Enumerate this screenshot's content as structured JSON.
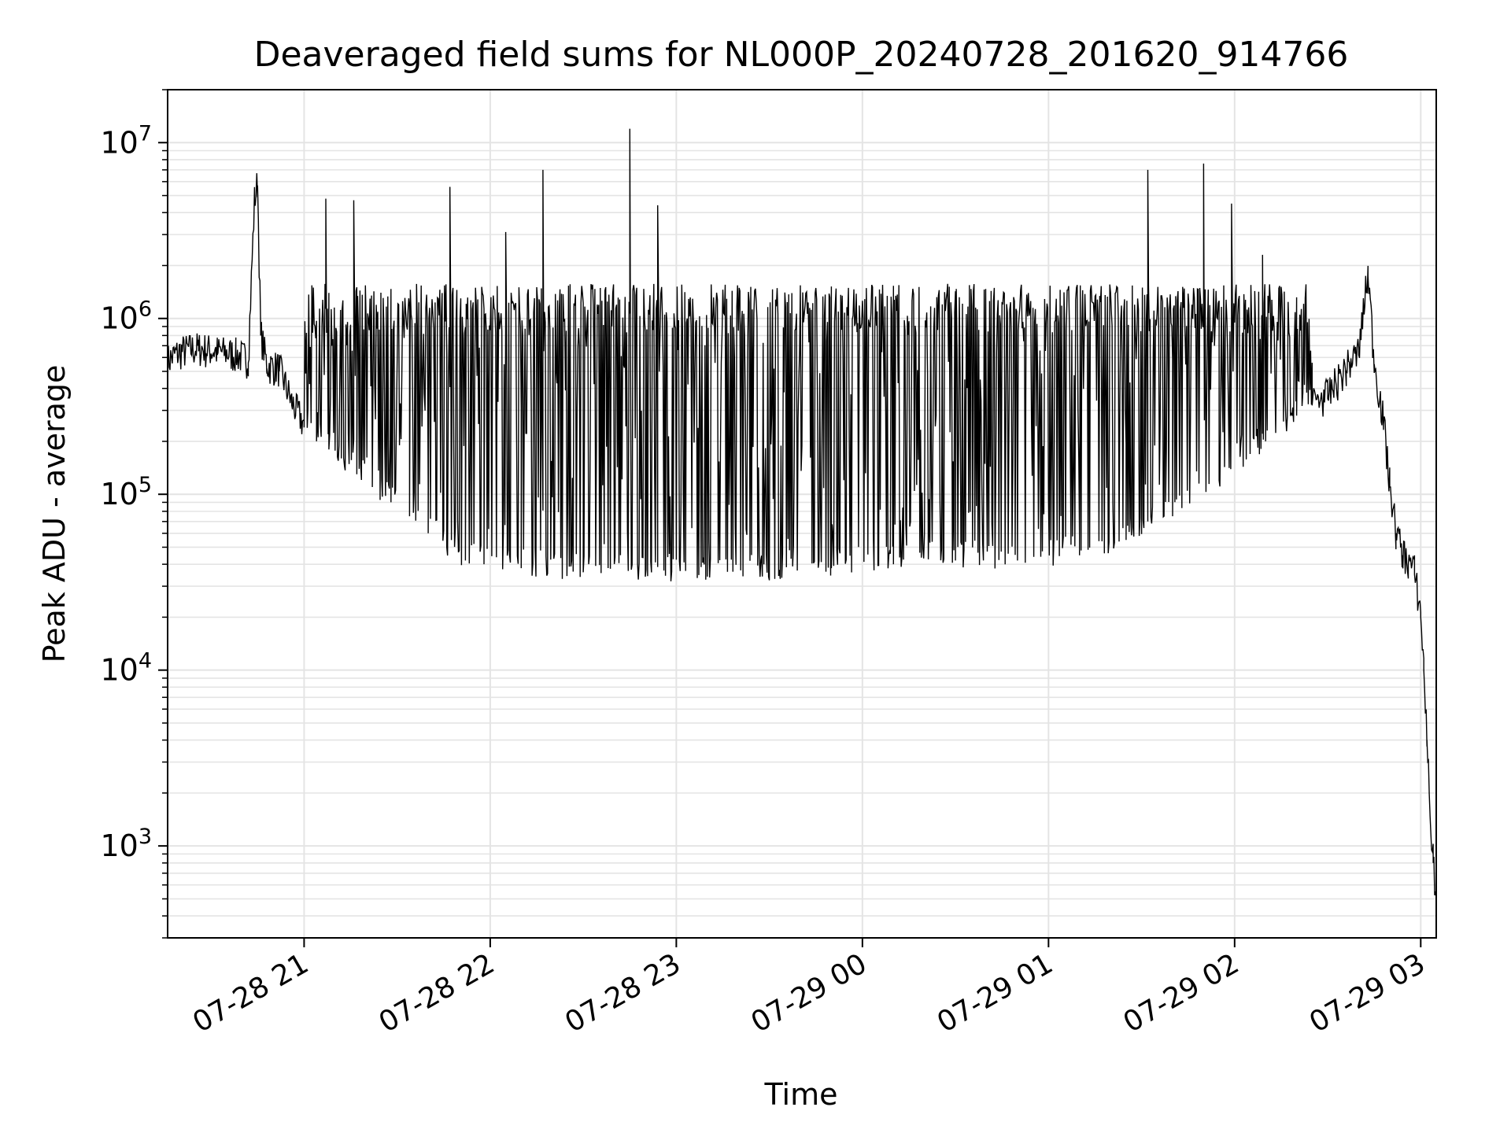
{
  "chart_data": {
    "type": "line",
    "title": "Deaveraged field sums for NL000P_20240728_201620_914766",
    "xlabel": "Time",
    "ylabel": "Peak ADU - average",
    "y_scale": "log",
    "ylim": [
      300,
      20000000
    ],
    "xlim": [
      "2024-07-28 20:16",
      "2024-07-29 03:05"
    ],
    "grid": true,
    "legend": "none",
    "line_color": "#000000",
    "x_ticks": [
      {
        "value": "2024-07-28 21:00",
        "label": "07-28 21"
      },
      {
        "value": "2024-07-28 22:00",
        "label": "07-28 22"
      },
      {
        "value": "2024-07-28 23:00",
        "label": "07-28 23"
      },
      {
        "value": "2024-07-29 00:00",
        "label": "07-29 00"
      },
      {
        "value": "2024-07-29 01:00",
        "label": "07-29 01"
      },
      {
        "value": "2024-07-29 02:00",
        "label": "07-29 02"
      },
      {
        "value": "2024-07-29 03:00",
        "label": "07-29 03"
      }
    ],
    "y_ticks": [
      {
        "value": 1000,
        "base": "10",
        "exp": "3"
      },
      {
        "value": 10000,
        "base": "10",
        "exp": "4"
      },
      {
        "value": 100000,
        "base": "10",
        "exp": "5"
      },
      {
        "value": 1000000,
        "base": "10",
        "exp": "6"
      },
      {
        "value": 10000000,
        "base": "10",
        "exp": "7"
      }
    ],
    "series": [
      {
        "points": [
          [
            "2024-07-28 20:16",
            550000
          ],
          [
            "2024-07-28 20:20",
            620000
          ],
          [
            "2024-07-28 20:26",
            650000
          ],
          [
            "2024-07-28 20:32",
            620000
          ],
          [
            "2024-07-28 20:38",
            600000
          ],
          [
            "2024-07-28 20:42",
            560000
          ],
          [
            "2024-07-28 20:44",
            4500000
          ],
          [
            "2024-07-28 20:45",
            5700000
          ],
          [
            "2024-07-28 20:46",
            800000
          ],
          [
            "2024-07-28 20:48",
            520000
          ],
          [
            "2024-07-28 20:52",
            500000
          ],
          [
            "2024-07-28 20:56",
            320000
          ],
          [
            "2024-07-28 21:00",
            240000
          ],
          [
            "2024-07-28 21:04",
            200000
          ],
          [
            "2024-07-28 21:08",
            180000
          ],
          [
            "2024-07-28 21:12",
            160000
          ],
          [
            "2024-07-28 21:17",
            130000
          ],
          [
            "2024-07-28 21:22",
            110000
          ],
          [
            "2024-07-28 21:28",
            90000
          ],
          [
            "2024-07-28 21:34",
            75000
          ],
          [
            "2024-07-28 21:40",
            60000
          ],
          [
            "2024-07-28 21:46",
            50000
          ],
          [
            "2024-07-28 21:52",
            42000
          ],
          [
            "2024-07-28 21:58",
            40000
          ],
          [
            "2024-07-28 22:10",
            38000
          ],
          [
            "2024-07-28 22:30",
            36000
          ],
          [
            "2024-07-28 22:50",
            34000
          ],
          [
            "2024-07-28 23:10",
            34000
          ],
          [
            "2024-07-28 23:30",
            36000
          ],
          [
            "2024-07-28 23:50",
            38000
          ],
          [
            "2024-07-29 00:10",
            40000
          ],
          [
            "2024-07-29 00:30",
            42000
          ],
          [
            "2024-07-29 00:50",
            42000
          ],
          [
            "2024-07-29 01:10",
            45000
          ],
          [
            "2024-07-29 01:25",
            55000
          ],
          [
            "2024-07-29 01:40",
            75000
          ],
          [
            "2024-07-29 01:55",
            120000
          ],
          [
            "2024-07-29 02:10",
            200000
          ],
          [
            "2024-07-29 02:20",
            280000
          ],
          [
            "2024-07-29 02:25",
            320000
          ],
          [
            "2024-07-29 02:30",
            350000
          ],
          [
            "2024-07-29 02:36",
            500000
          ],
          [
            "2024-07-29 02:40",
            620000
          ],
          [
            "2024-07-29 02:43",
            1750000
          ],
          [
            "2024-07-29 02:45",
            550000
          ],
          [
            "2024-07-29 02:48",
            250000
          ],
          [
            "2024-07-29 02:50",
            110000
          ],
          [
            "2024-07-29 02:52",
            60000
          ],
          [
            "2024-07-29 02:54",
            45000
          ],
          [
            "2024-07-29 02:56",
            40000
          ],
          [
            "2024-07-29 02:58",
            35000
          ],
          [
            "2024-07-29 03:00",
            20000
          ],
          [
            "2024-07-29 03:01",
            10000
          ],
          [
            "2024-07-29 03:02",
            4000
          ],
          [
            "2024-07-29 03:03",
            1500
          ],
          [
            "2024-07-29 03:04",
            800
          ],
          [
            "2024-07-29 03:05",
            500
          ]
        ],
        "band": {
          "start": "2024-07-28 21:00",
          "end": "2024-07-29 02:25",
          "upper": 1500000,
          "note_spikes": [
            [
              "2024-07-28 21:07",
              4800000
            ],
            [
              "2024-07-28 21:16",
              4700000
            ],
            [
              "2024-07-28 21:47",
              5600000
            ],
            [
              "2024-07-28 22:17",
              7000000
            ],
            [
              "2024-07-28 22:45",
              12000000
            ],
            [
              "2024-07-28 22:54",
              4400000
            ],
            [
              "2024-07-28 22:05",
              3100000
            ],
            [
              "2024-07-29 01:32",
              7000000
            ],
            [
              "2024-07-29 01:50",
              7600000
            ],
            [
              "2024-07-29 01:59",
              4500000
            ],
            [
              "2024-07-29 02:09",
              2300000
            ]
          ]
        }
      }
    ]
  }
}
